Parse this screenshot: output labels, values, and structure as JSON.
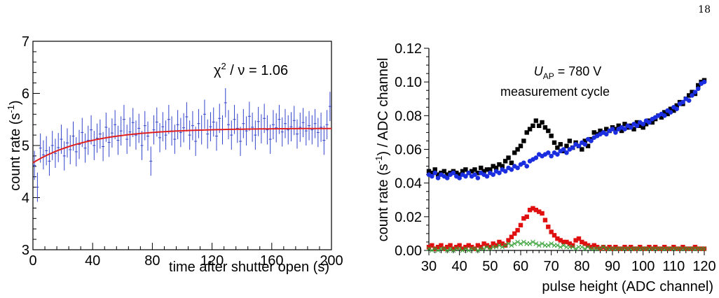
{
  "page_number": "18",
  "chart_data": [
    {
      "type": "scatter",
      "ylabel": "count rate (s",
      "ylabel_sup": "-1",
      "ylabel_tail": ")",
      "xlabel": "time after shutter open (s)",
      "xlim": [
        0,
        200
      ],
      "ylim": [
        3,
        7
      ],
      "xticks": [
        0,
        40,
        80,
        120,
        160,
        200
      ],
      "yticks": [
        3,
        4,
        5,
        6,
        7
      ],
      "annotation": {
        "chi": "χ",
        "sup": "2",
        "rest": " / ν = 1.06"
      },
      "data_color": "#3344cc",
      "fit_color": "#e02020",
      "fit": {
        "a": 5.33,
        "b": 0.66,
        "tau": 38
      },
      "series": [
        {
          "x": [
            1,
            3,
            5,
            7,
            9,
            11,
            13,
            15,
            17,
            19,
            21,
            23,
            25,
            27,
            29,
            31,
            33,
            35,
            37,
            39,
            41,
            43,
            45,
            47,
            49,
            51,
            53,
            55,
            57,
            59,
            61,
            63,
            65,
            67,
            69,
            71,
            73,
            75,
            77,
            79,
            81,
            83,
            85,
            87,
            89,
            91,
            93,
            95,
            97,
            99,
            101,
            103,
            105,
            107,
            109,
            111,
            113,
            115,
            117,
            119,
            121,
            123,
            125,
            127,
            129,
            131,
            133,
            135,
            137,
            139,
            141,
            143,
            145,
            147,
            149,
            151,
            153,
            155,
            157,
            159,
            161,
            163,
            165,
            167,
            169,
            171,
            173,
            175,
            177,
            179,
            181,
            183,
            185,
            187,
            189,
            191,
            193,
            195,
            197,
            199
          ],
          "y": [
            4.62,
            4.2,
            4.95,
            4.82,
            4.9,
            4.7,
            5.0,
            4.85,
            4.96,
            5.12,
            4.8,
            5.05,
            4.92,
            5.18,
            4.88,
            5.02,
            5.25,
            4.95,
            5.1,
            5.3,
            5.0,
            5.14,
            5.22,
            4.98,
            5.35,
            5.06,
            5.24,
            5.4,
            5.1,
            5.28,
            5.5,
            5.12,
            5.26,
            5.44,
            5.2,
            5.33,
            5.0,
            5.38,
            5.18,
            4.7,
            5.3,
            5.45,
            5.15,
            5.36,
            5.2,
            5.5,
            5.28,
            5.12,
            5.4,
            5.25,
            5.34,
            5.55,
            5.2,
            5.38,
            5.08,
            5.42,
            5.3,
            5.6,
            5.22,
            5.36,
            5.45,
            5.18,
            5.52,
            5.3,
            5.82,
            5.4,
            5.2,
            5.5,
            5.33,
            5.08,
            5.42,
            5.28,
            5.56,
            5.35,
            5.2,
            5.46,
            5.32,
            5.52,
            5.3,
            5.12,
            5.4,
            5.34,
            5.5,
            5.26,
            5.42,
            5.3,
            5.36,
            5.48,
            5.22,
            5.35,
            5.44,
            5.28,
            5.38,
            5.3,
            5.42,
            5.25,
            5.35,
            5.1,
            5.4,
            5.75
          ],
          "yerr": 0.28
        }
      ]
    },
    {
      "type": "scatter",
      "ylabel": "count rate (s",
      "ylabel_sup": "-1",
      "ylabel_tail": ") / ADC channel",
      "xlabel": "pulse height (ADC channel)",
      "xlim": [
        30,
        120
      ],
      "ylim": [
        0,
        0.12
      ],
      "xticks": [
        30,
        40,
        50,
        60,
        70,
        80,
        90,
        100,
        110,
        120
      ],
      "yticks": [
        0.0,
        0.02,
        0.04,
        0.06,
        0.08,
        0.1,
        0.12
      ],
      "ytick_labels": [
        "0.00",
        "0.02",
        "0.04",
        "0.06",
        "0.08",
        "0.10",
        "0.12"
      ],
      "annotation_line1": {
        "u": "U",
        "sub": "AP",
        "rest": " = 780 V"
      },
      "annotation_line2": "measurement cycle",
      "series": [
        {
          "color": "#000000",
          "marker": "square",
          "x": [
            30,
            31,
            32,
            33,
            34,
            35,
            36,
            37,
            38,
            39,
            40,
            41,
            42,
            43,
            44,
            45,
            46,
            47,
            48,
            49,
            50,
            51,
            52,
            53,
            54,
            55,
            56,
            57,
            58,
            59,
            60,
            61,
            62,
            63,
            64,
            65,
            66,
            67,
            68,
            69,
            70,
            71,
            72,
            73,
            74,
            75,
            76,
            77,
            78,
            79,
            80,
            81,
            82,
            83,
            84,
            85,
            86,
            87,
            88,
            89,
            90,
            91,
            92,
            93,
            94,
            95,
            96,
            97,
            98,
            99,
            100,
            101,
            102,
            103,
            104,
            105,
            106,
            107,
            108,
            109,
            110,
            111,
            112,
            113,
            114,
            115,
            116,
            117,
            118,
            119,
            120
          ],
          "y": [
            0.047,
            0.046,
            0.048,
            0.045,
            0.046,
            0.047,
            0.045,
            0.046,
            0.047,
            0.046,
            0.045,
            0.047,
            0.048,
            0.046,
            0.047,
            0.048,
            0.046,
            0.049,
            0.047,
            0.048,
            0.048,
            0.05,
            0.049,
            0.051,
            0.05,
            0.053,
            0.055,
            0.052,
            0.058,
            0.06,
            0.062,
            0.065,
            0.07,
            0.072,
            0.074,
            0.077,
            0.074,
            0.076,
            0.073,
            0.071,
            0.068,
            0.064,
            0.061,
            0.063,
            0.059,
            0.062,
            0.065,
            0.061,
            0.064,
            0.062,
            0.06,
            0.065,
            0.062,
            0.066,
            0.07,
            0.069,
            0.071,
            0.07,
            0.072,
            0.071,
            0.073,
            0.072,
            0.074,
            0.071,
            0.075,
            0.073,
            0.074,
            0.072,
            0.076,
            0.074,
            0.073,
            0.075,
            0.077,
            0.076,
            0.078,
            0.08,
            0.079,
            0.082,
            0.081,
            0.084,
            0.083,
            0.086,
            0.088,
            0.087,
            0.09,
            0.092,
            0.094,
            0.093,
            0.098,
            0.1,
            0.101
          ]
        },
        {
          "color": "#1a2ee0",
          "marker": "circle",
          "x": [
            30,
            31,
            32,
            33,
            34,
            35,
            36,
            37,
            38,
            39,
            40,
            41,
            42,
            43,
            44,
            45,
            46,
            47,
            48,
            49,
            50,
            51,
            52,
            53,
            54,
            55,
            56,
            57,
            58,
            59,
            60,
            61,
            62,
            63,
            64,
            65,
            66,
            67,
            68,
            69,
            70,
            71,
            72,
            73,
            74,
            75,
            76,
            77,
            78,
            79,
            80,
            81,
            82,
            83,
            84,
            85,
            86,
            87,
            88,
            89,
            90,
            91,
            92,
            93,
            94,
            95,
            96,
            97,
            98,
            99,
            100,
            101,
            102,
            103,
            104,
            105,
            106,
            107,
            108,
            109,
            110,
            111,
            112,
            113,
            114,
            115,
            116,
            117,
            118,
            119,
            120
          ],
          "y": [
            0.045,
            0.044,
            0.046,
            0.043,
            0.045,
            0.044,
            0.043,
            0.045,
            0.046,
            0.044,
            0.043,
            0.045,
            0.044,
            0.046,
            0.044,
            0.045,
            0.043,
            0.046,
            0.045,
            0.044,
            0.046,
            0.045,
            0.047,
            0.046,
            0.048,
            0.047,
            0.049,
            0.048,
            0.05,
            0.049,
            0.051,
            0.052,
            0.05,
            0.053,
            0.054,
            0.055,
            0.057,
            0.056,
            0.057,
            0.058,
            0.056,
            0.058,
            0.057,
            0.059,
            0.06,
            0.058,
            0.06,
            0.061,
            0.063,
            0.062,
            0.064,
            0.063,
            0.066,
            0.065,
            0.067,
            0.068,
            0.069,
            0.07,
            0.069,
            0.071,
            0.072,
            0.07,
            0.072,
            0.073,
            0.072,
            0.074,
            0.073,
            0.075,
            0.074,
            0.076,
            0.075,
            0.077,
            0.076,
            0.078,
            0.079,
            0.08,
            0.081,
            0.08,
            0.083,
            0.082,
            0.085,
            0.084,
            0.087,
            0.088,
            0.09,
            0.089,
            0.092,
            0.094,
            0.096,
            0.099,
            0.1
          ]
        },
        {
          "color": "#e01010",
          "marker": "square",
          "x": [
            30,
            31,
            32,
            33,
            34,
            35,
            36,
            37,
            38,
            39,
            40,
            41,
            42,
            43,
            44,
            45,
            46,
            47,
            48,
            49,
            50,
            51,
            52,
            53,
            54,
            55,
            56,
            57,
            58,
            59,
            60,
            61,
            62,
            63,
            64,
            65,
            66,
            67,
            68,
            69,
            70,
            71,
            72,
            73,
            74,
            75,
            76,
            77,
            78,
            79,
            80,
            81,
            82,
            83,
            84,
            85,
            86,
            87,
            88,
            89,
            90,
            91,
            92,
            93,
            94,
            95,
            96,
            97,
            98,
            99,
            100,
            101,
            102,
            103,
            104,
            105,
            106,
            107,
            108,
            109,
            110,
            111,
            112,
            113,
            114,
            115,
            116,
            117,
            118,
            119,
            120
          ],
          "y": [
            0.002,
            0.003,
            0.001,
            0.002,
            0.003,
            0.001,
            0.002,
            0.003,
            0.001,
            0.002,
            0.003,
            0.001,
            0.002,
            0.003,
            0.002,
            0.001,
            0.003,
            0.002,
            0.004,
            0.003,
            0.002,
            0.004,
            0.003,
            0.005,
            0.004,
            0.003,
            0.006,
            0.008,
            0.01,
            0.012,
            0.015,
            0.019,
            0.02,
            0.024,
            0.025,
            0.024,
            0.023,
            0.022,
            0.018,
            0.014,
            0.011,
            0.009,
            0.007,
            0.006,
            0.005,
            0.005,
            0.004,
            0.003,
            0.006,
            0.007,
            0.005,
            0.004,
            0.003,
            0.002,
            0.003,
            0.002,
            0.001,
            0.002,
            0.001,
            0.002,
            0.001,
            0.002,
            0.001,
            0.001,
            0.002,
            0.001,
            0.002,
            0.001,
            0.001,
            0.002,
            0.001,
            0.001,
            0.002,
            0.001,
            0.002,
            0.001,
            0.001,
            0.002,
            0.001,
            0.001,
            0.002,
            0.001,
            0.001,
            0.002,
            0.001,
            0.001,
            0.001,
            0.002,
            0.001,
            0.001,
            0.001
          ]
        },
        {
          "color": "#33a033",
          "marker": "cross",
          "x": [
            30,
            31,
            32,
            33,
            34,
            35,
            36,
            37,
            38,
            39,
            40,
            41,
            42,
            43,
            44,
            45,
            46,
            47,
            48,
            49,
            50,
            51,
            52,
            53,
            54,
            55,
            56,
            57,
            58,
            59,
            60,
            61,
            62,
            63,
            64,
            65,
            66,
            67,
            68,
            69,
            70,
            71,
            72,
            73,
            74,
            75,
            76,
            77,
            78,
            79,
            80,
            81,
            82,
            83,
            84,
            85,
            86,
            87,
            88,
            89,
            90,
            91,
            92,
            93,
            94,
            95,
            96,
            97,
            98,
            99,
            100,
            101,
            102,
            103,
            104,
            105,
            106,
            107,
            108,
            109,
            110,
            111,
            112,
            113,
            114,
            115,
            116,
            117,
            118,
            119,
            120
          ],
          "y": [
            0.001,
            0.0,
            0.001,
            0.0,
            0.001,
            0.001,
            0.0,
            0.001,
            0.0,
            0.001,
            0.001,
            0.0,
            0.001,
            0.0,
            0.001,
            0.001,
            0.0,
            0.001,
            0.001,
            0.002,
            0.001,
            0.002,
            0.002,
            0.003,
            0.002,
            0.003,
            0.004,
            0.003,
            0.004,
            0.005,
            0.004,
            0.005,
            0.004,
            0.004,
            0.005,
            0.004,
            0.003,
            0.004,
            0.003,
            0.003,
            0.004,
            0.003,
            0.003,
            0.002,
            0.003,
            0.002,
            0.002,
            0.002,
            0.001,
            0.002,
            0.002,
            0.001,
            0.002,
            0.001,
            0.001,
            0.001,
            0.001,
            0.002,
            0.001,
            0.001,
            0.001,
            0.001,
            0.001,
            0.001,
            0.001,
            0.001,
            0.001,
            0.001,
            0.001,
            0.001,
            0.001,
            0.001,
            0.001,
            0.001,
            0.001,
            0.001,
            0.001,
            0.001,
            0.001,
            0.001,
            0.001,
            0.001,
            0.001,
            0.001,
            0.001,
            0.001,
            0.001,
            0.001,
            0.001,
            0.001,
            0.001
          ]
        }
      ]
    }
  ]
}
